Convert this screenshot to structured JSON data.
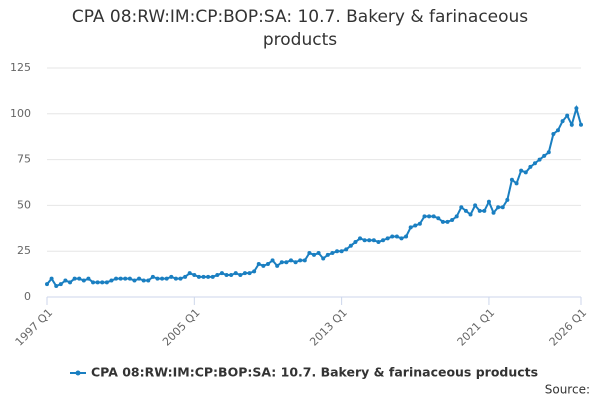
{
  "chart_data": {
    "type": "line",
    "title": "CPA 08:RW:IM:CP:BOP:SA: 10.7. Bakery & farinaceous products",
    "source": "Source:",
    "categories": [
      "1997 Q1",
      null,
      null,
      null,
      null,
      null,
      null,
      null,
      null,
      null,
      null,
      null,
      null,
      null,
      null,
      null,
      null,
      null,
      null,
      null,
      null,
      null,
      null,
      null,
      null,
      null,
      null,
      null,
      null,
      null,
      null,
      null,
      "2005 Q1",
      null,
      null,
      null,
      null,
      null,
      null,
      null,
      null,
      null,
      null,
      null,
      null,
      null,
      null,
      null,
      null,
      null,
      null,
      null,
      null,
      null,
      null,
      null,
      null,
      null,
      null,
      null,
      null,
      null,
      null,
      null,
      "2013 Q1",
      null,
      null,
      null,
      null,
      null,
      null,
      null,
      null,
      null,
      null,
      null,
      null,
      null,
      null,
      null,
      null,
      null,
      null,
      null,
      null,
      null,
      null,
      null,
      null,
      null,
      null,
      null,
      null,
      null,
      null,
      null,
      "2021 Q1",
      null,
      null,
      null,
      null,
      null,
      null,
      null,
      null,
      null,
      null,
      null,
      null,
      null,
      null,
      null,
      null,
      null,
      null,
      null,
      "2026 Q1"
    ],
    "series": [
      {
        "name": "CPA 08:RW:IM:CP:BOP:SA: 10.7. Bakery & farinaceous products",
        "color": "#1a7fc1",
        "values": [
          7,
          10,
          6,
          7,
          9,
          8,
          10,
          10,
          9,
          10,
          8,
          8,
          8,
          8,
          9,
          10,
          10,
          10,
          10,
          9,
          10,
          9,
          9,
          11,
          10,
          10,
          10,
          11,
          10,
          10,
          11,
          13,
          12,
          11,
          11,
          11,
          11,
          12,
          13,
          12,
          12,
          13,
          12,
          13,
          13,
          14,
          18,
          17,
          18,
          20,
          17,
          19,
          19,
          20,
          19,
          20,
          20,
          24,
          23,
          24,
          21,
          23,
          24,
          25,
          25,
          26,
          28,
          30,
          32,
          31,
          31,
          31,
          30,
          31,
          32,
          33,
          33,
          32,
          33,
          38,
          39,
          40,
          44,
          44,
          44,
          43,
          41,
          41,
          42,
          44,
          49,
          47,
          45,
          50,
          47,
          47,
          52,
          46,
          49,
          49,
          53,
          64,
          62,
          69,
          68,
          71,
          73,
          75,
          77,
          79,
          89,
          91,
          96,
          99,
          94,
          103,
          94
        ]
      }
    ],
    "ylim": [
      0,
      125
    ],
    "yticks": [
      0,
      25,
      50,
      75,
      100,
      125
    ],
    "grid": true
  }
}
